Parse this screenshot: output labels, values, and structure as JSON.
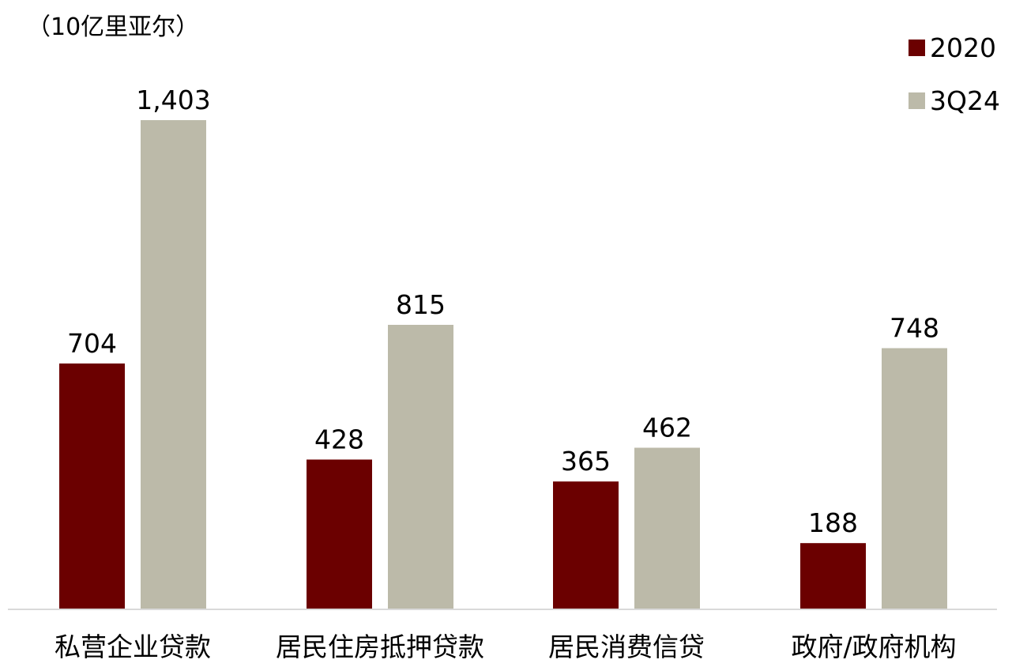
{
  "chart_data": {
    "type": "bar",
    "unit_label": "（10亿里亚尔）",
    "categories": [
      "私营企业贷款",
      "居民住房抵押贷款",
      "居民消费信贷",
      "政府/政府机构"
    ],
    "series": [
      {
        "name": "2020",
        "color": "#6b0000",
        "values": [
          704,
          428,
          365,
          188
        ],
        "labels": [
          "704",
          "428",
          "365",
          "188"
        ]
      },
      {
        "name": "3Q24",
        "color": "#bcbaa9",
        "values": [
          1403,
          815,
          462,
          748
        ],
        "labels": [
          "1,403",
          "815",
          "462",
          "748"
        ]
      }
    ],
    "ylim": [
      0,
      1403
    ],
    "legend_position": "top-right",
    "grid": false
  }
}
